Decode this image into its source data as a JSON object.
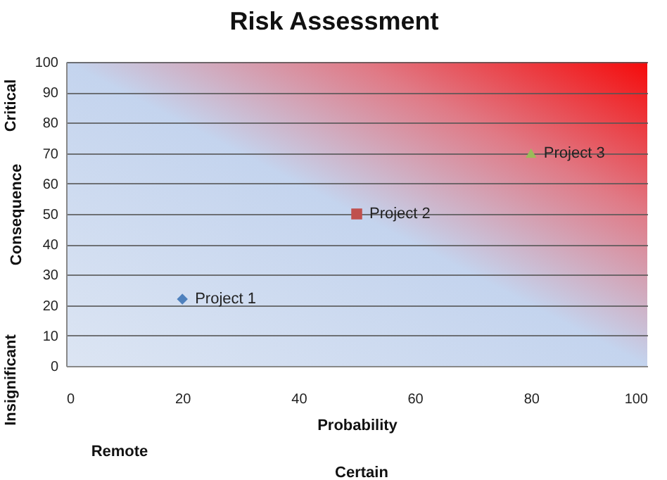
{
  "chart_data": {
    "type": "scatter",
    "title": "Risk Assessment",
    "xlabel": "Probability",
    "ylabel": "Consequence",
    "annotations": [
      "Critical",
      "Insignificant",
      "Remote",
      "Certain"
    ],
    "xlim": [
      0,
      100
    ],
    "xticks": [
      0,
      20,
      40,
      60,
      80,
      100
    ],
    "ylim": [
      0,
      100
    ],
    "yticks": [
      0,
      10,
      20,
      30,
      40,
      50,
      60,
      70,
      80,
      90,
      100
    ],
    "grid": "y",
    "series": [
      {
        "name": "Project 1",
        "color": "#4f81bd",
        "marker": "diamond",
        "x": [
          20
        ],
        "values": [
          22
        ]
      },
      {
        "name": "Project 2",
        "color": "#c0504d",
        "marker": "square",
        "x": [
          50
        ],
        "values": [
          50
        ]
      },
      {
        "name": "Project 3",
        "color": "#9bbb59",
        "marker": "triangle",
        "x": [
          80
        ],
        "values": [
          70
        ]
      }
    ]
  }
}
